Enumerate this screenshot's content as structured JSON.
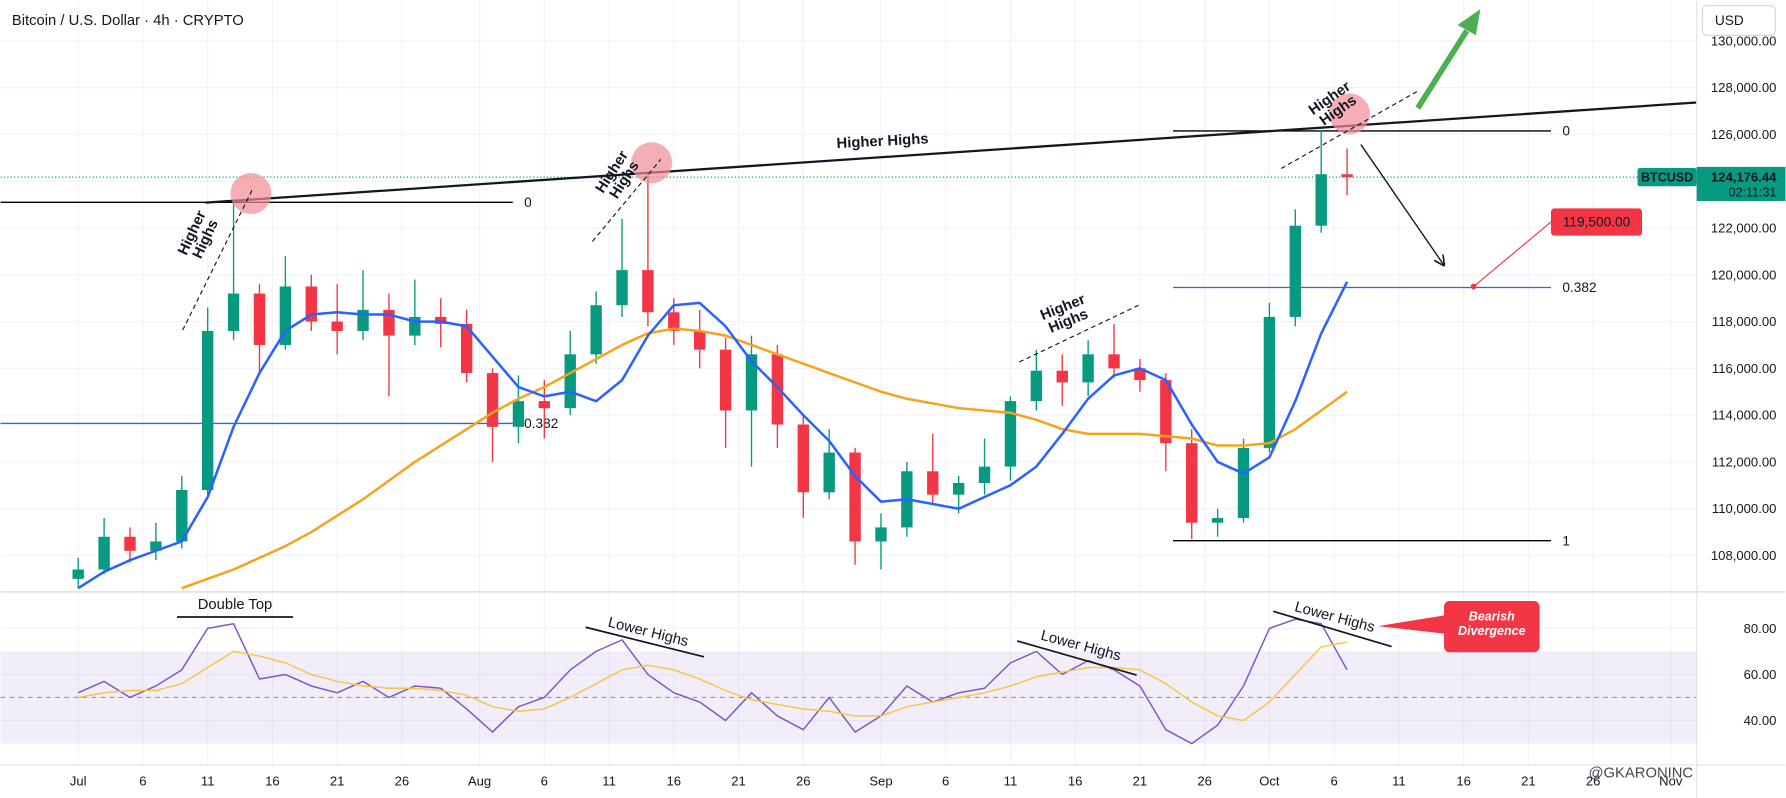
{
  "header": {
    "title": "Bitcoin / U.S. Dollar · 4h · CRYPTO",
    "currency": "USD",
    "watermark": "@GKARONINC"
  },
  "chart_data": [
    {
      "type": "candlestick",
      "symbol": "BTCUSD",
      "x": [
        "07-01",
        "07-03",
        "07-05",
        "07-07",
        "07-09",
        "07-11",
        "07-13",
        "07-15",
        "07-17",
        "07-19",
        "07-21",
        "07-23",
        "07-25",
        "07-27",
        "07-29",
        "07-31",
        "08-02",
        "08-04",
        "08-06",
        "08-08",
        "08-10",
        "08-12",
        "08-14",
        "08-16",
        "08-18",
        "08-20",
        "08-22",
        "08-24",
        "08-26",
        "08-28",
        "08-30",
        "09-01",
        "09-03",
        "09-05",
        "09-07",
        "09-09",
        "09-11",
        "09-13",
        "09-15",
        "09-17",
        "09-19",
        "09-21",
        "09-23",
        "09-25",
        "09-27",
        "09-29",
        "10-01",
        "10-03",
        "10-05",
        "10-07"
      ],
      "ohlc": [
        [
          107000,
          107900,
          106600,
          107400
        ],
        [
          107400,
          109600,
          107200,
          108800
        ],
        [
          108800,
          109200,
          107700,
          108200
        ],
        [
          108200,
          109400,
          107800,
          108600
        ],
        [
          108600,
          111400,
          108300,
          110800
        ],
        [
          110800,
          118600,
          110600,
          117600
        ],
        [
          117600,
          123100,
          117200,
          119200
        ],
        [
          119200,
          119600,
          115800,
          117000
        ],
        [
          117000,
          120800,
          116800,
          119500
        ],
        [
          119500,
          120000,
          117600,
          118000
        ],
        [
          118000,
          119600,
          116600,
          117600
        ],
        [
          117600,
          120200,
          117200,
          118500
        ],
        [
          118500,
          119200,
          114800,
          117400
        ],
        [
          117400,
          119800,
          117000,
          118200
        ],
        [
          118200,
          119000,
          116900,
          117900
        ],
        [
          117900,
          118500,
          115400,
          115800
        ],
        [
          115800,
          116000,
          112000,
          113500
        ],
        [
          113500,
          115700,
          112800,
          114600
        ],
        [
          114600,
          115500,
          113000,
          114300
        ],
        [
          114300,
          117600,
          114000,
          116600
        ],
        [
          116600,
          119300,
          116200,
          118700
        ],
        [
          118700,
          122400,
          118200,
          120200
        ],
        [
          120200,
          124400,
          117800,
          118400
        ],
        [
          118400,
          119000,
          117000,
          117600
        ],
        [
          117600,
          118500,
          116000,
          116800
        ],
        [
          116800,
          117300,
          112600,
          114200
        ],
        [
          114200,
          117400,
          111800,
          116600
        ],
        [
          116600,
          117000,
          112600,
          113600
        ],
        [
          113600,
          114000,
          109600,
          110700
        ],
        [
          110700,
          113400,
          110400,
          112400
        ],
        [
          112400,
          112600,
          107600,
          108600
        ],
        [
          108600,
          109800,
          107400,
          109200
        ],
        [
          109200,
          112000,
          108800,
          111600
        ],
        [
          111600,
          113200,
          110200,
          110600
        ],
        [
          110600,
          111400,
          109800,
          111100
        ],
        [
          111100,
          113000,
          110600,
          111800
        ],
        [
          111800,
          114800,
          111200,
          114600
        ],
        [
          114600,
          116800,
          114200,
          115900
        ],
        [
          115900,
          116600,
          114400,
          115400
        ],
        [
          115400,
          117200,
          114800,
          116600
        ],
        [
          116600,
          117900,
          115600,
          116000
        ],
        [
          116000,
          116400,
          115000,
          115500
        ],
        [
          115500,
          115800,
          111600,
          112800
        ],
        [
          112800,
          113400,
          108700,
          109400
        ],
        [
          109400,
          110000,
          108800,
          109600
        ],
        [
          109600,
          113000,
          109400,
          112600
        ],
        [
          112600,
          118800,
          112400,
          118200
        ],
        [
          118200,
          122800,
          117800,
          122100
        ],
        [
          122100,
          126200,
          121800,
          124300
        ],
        [
          124300,
          125400,
          123400,
          124176.44
        ]
      ],
      "up_color": "#089981",
      "down_color": "#f23645",
      "series": [
        {
          "color": "#f7a21b",
          "values": [
            null,
            null,
            null,
            null,
            106600,
            107000,
            107400,
            107900,
            108400,
            109000,
            109700,
            110400,
            111200,
            112000,
            112700,
            113400,
            114100,
            114700,
            115200,
            115800,
            116400,
            117000,
            117500,
            117700,
            117600,
            117400,
            117000,
            116600,
            116200,
            115800,
            115400,
            115000,
            114700,
            114500,
            114300,
            114200,
            114100,
            113800,
            113400,
            113200,
            113200,
            113200,
            113100,
            113000,
            112700,
            112700,
            112800,
            113400,
            114200,
            115000
          ]
        },
        {
          "color": "#2962ff",
          "values": [
            106600,
            107300,
            107800,
            108200,
            108600,
            110500,
            113500,
            115800,
            117600,
            118300,
            118400,
            118300,
            118300,
            118000,
            118000,
            117800,
            116500,
            115200,
            114800,
            115000,
            114600,
            115500,
            117400,
            118700,
            118800,
            117800,
            116300,
            115200,
            114000,
            112900,
            111400,
            110300,
            110400,
            110200,
            110000,
            110500,
            111000,
            111800,
            113200,
            114700,
            115700,
            116000,
            115500,
            113600,
            112000,
            111500,
            112200,
            114600,
            117500,
            119700
          ]
        }
      ],
      "ylim": [
        106440,
        131750
      ],
      "yticks": [
        {
          "value": 108000,
          "label": "108,000.00"
        },
        {
          "value": 110000,
          "label": "110,000.00"
        },
        {
          "value": 112000,
          "label": "112,000.00"
        },
        {
          "value": 114000,
          "label": "114,000.00"
        },
        {
          "value": 116000,
          "label": "116,000.00"
        },
        {
          "value": 118000,
          "label": "118,000.00"
        },
        {
          "value": 120000,
          "label": "120,000.00"
        },
        {
          "value": 122000,
          "label": "122,000.00"
        },
        {
          "value": 124000,
          "label": "124,000.00"
        },
        {
          "value": 126000,
          "label": "126,000.00"
        },
        {
          "value": 128000,
          "label": "128,000.00"
        },
        {
          "value": 130000,
          "label": "130,000.00"
        }
      ],
      "xlim": [
        "06-25",
        "11-03"
      ],
      "xticks": [
        {
          "value": "07-01",
          "label": "Jul"
        },
        {
          "value": "07-06",
          "label": "6"
        },
        {
          "value": "07-11",
          "label": "11"
        },
        {
          "value": "07-16",
          "label": "16"
        },
        {
          "value": "07-21",
          "label": "21"
        },
        {
          "value": "07-26",
          "label": "26"
        },
        {
          "value": "08-01",
          "label": "Aug"
        },
        {
          "value": "08-06",
          "label": "6"
        },
        {
          "value": "08-11",
          "label": "11"
        },
        {
          "value": "08-16",
          "label": "16"
        },
        {
          "value": "08-21",
          "label": "21"
        },
        {
          "value": "08-26",
          "label": "26"
        },
        {
          "value": "09-01",
          "label": "Sep"
        },
        {
          "value": "09-06",
          "label": "6"
        },
        {
          "value": "09-11",
          "label": "11"
        },
        {
          "value": "09-16",
          "label": "16"
        },
        {
          "value": "09-21",
          "label": "21"
        },
        {
          "value": "09-26",
          "label": "26"
        },
        {
          "value": "10-01",
          "label": "Oct"
        },
        {
          "value": "10-06",
          "label": "6"
        },
        {
          "value": "10-11",
          "label": "11"
        },
        {
          "value": "10-16",
          "label": "16"
        },
        {
          "value": "10-21",
          "label": "21"
        },
        {
          "value": "10-26",
          "label": "26"
        },
        {
          "value": "11-01",
          "label": "Nov"
        }
      ],
      "grid": true,
      "last_price": {
        "value": 124176.44,
        "label": "124,176.44"
      },
      "countdown": "02:11:31",
      "fibs": [
        {
          "high": 123100,
          "low": 98350,
          "levels": [
            0,
            0.382
          ],
          "colors": [
            "#000000",
            "#2962ff"
          ]
        },
        {
          "high": 126150,
          "low": 108630,
          "levels": [
            0,
            0.382,
            1
          ],
          "colors": [
            "#000000",
            "#2962ff",
            "#000000"
          ]
        }
      ],
      "target": {
        "value": 119500,
        "label": "119,500.00"
      },
      "annotations": [
        "Higher Highs",
        "Higher Highs",
        "Higher Highs",
        "Higher Highs",
        "Higher Highs"
      ]
    },
    {
      "type": "rsi",
      "series": [
        {
          "color": "#7e57c2",
          "values": [
            52,
            57,
            50,
            55,
            62,
            80,
            82,
            58,
            60,
            55,
            52,
            57,
            50,
            55,
            54,
            45,
            35,
            46,
            50,
            62,
            70,
            75,
            60,
            52,
            48,
            40,
            52,
            42,
            36,
            50,
            35,
            42,
            55,
            48,
            52,
            54,
            65,
            70,
            60,
            66,
            62,
            55,
            36,
            30,
            38,
            55,
            80,
            84,
            82,
            62
          ]
        },
        {
          "color": "#f7c548",
          "values": [
            50,
            52,
            53,
            53,
            56,
            63,
            70,
            68,
            65,
            60,
            57,
            55,
            54,
            54,
            53,
            51,
            46,
            44,
            45,
            50,
            56,
            62,
            64,
            62,
            58,
            53,
            49,
            47,
            45,
            44,
            42,
            42,
            46,
            48,
            50,
            52,
            55,
            59,
            61,
            63,
            63,
            62,
            56,
            48,
            42,
            40,
            48,
            60,
            72,
            74
          ]
        }
      ],
      "ylim": [
        20.7,
        95.8
      ],
      "yticks": [
        {
          "value": 40,
          "label": "40.00"
        },
        {
          "value": 60,
          "label": "60.00"
        },
        {
          "value": 80,
          "label": "80.00"
        }
      ],
      "band": [
        30,
        70
      ],
      "midline": 50,
      "annotations": [
        "Double Top",
        "Lower Highs",
        "Lower Highs",
        "Lower Highs",
        "Bearish Divergence"
      ]
    }
  ]
}
